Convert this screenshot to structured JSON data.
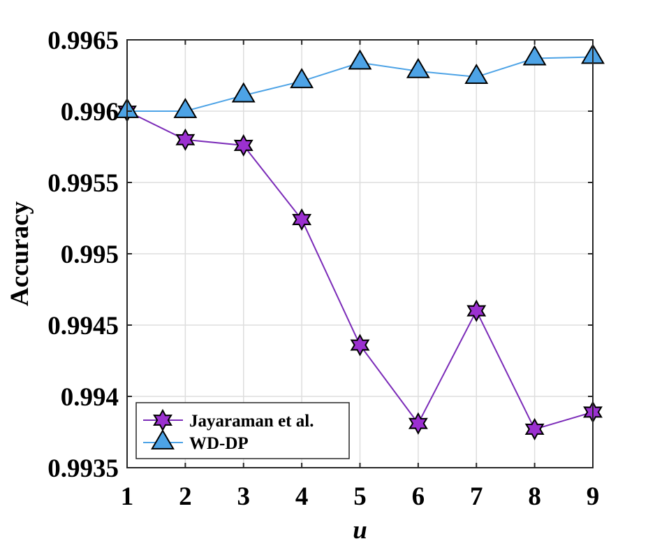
{
  "chart_data": {
    "type": "line",
    "xlabel": "u",
    "ylabel": "Accuracy",
    "x": [
      1,
      2,
      3,
      4,
      5,
      6,
      7,
      8,
      9
    ],
    "xticks": [
      "1",
      "2",
      "3",
      "4",
      "5",
      "6",
      "7",
      "8",
      "9"
    ],
    "xlim": [
      1,
      9
    ],
    "ylim": [
      0.9935,
      0.9965
    ],
    "yticks": [
      {
        "value": 0.9935,
        "label": "0.9935"
      },
      {
        "value": 0.994,
        "label": "0.994"
      },
      {
        "value": 0.9945,
        "label": "0.9945"
      },
      {
        "value": 0.995,
        "label": "0.995"
      },
      {
        "value": 0.9955,
        "label": "0.9955"
      },
      {
        "value": 0.996,
        "label": "0.996"
      },
      {
        "value": 0.9965,
        "label": "0.9965"
      }
    ],
    "grid": true,
    "legend_position": "bottom-left",
    "series": [
      {
        "name": "Jayaraman et al.",
        "color": "#7B2BB8",
        "marker_fill": "#9B30D0",
        "marker": "hexagram",
        "values": [
          0.996,
          0.9958,
          0.99576,
          0.99524,
          0.99436,
          0.99381,
          0.9946,
          0.99377,
          0.99389
        ]
      },
      {
        "name": "WD-DP",
        "color": "#4DA3E6",
        "marker_fill": "#4DA3E6",
        "marker": "triangle",
        "values": [
          0.996,
          0.996,
          0.99611,
          0.99621,
          0.99634,
          0.99628,
          0.99624,
          0.99637,
          0.99638
        ]
      }
    ]
  }
}
